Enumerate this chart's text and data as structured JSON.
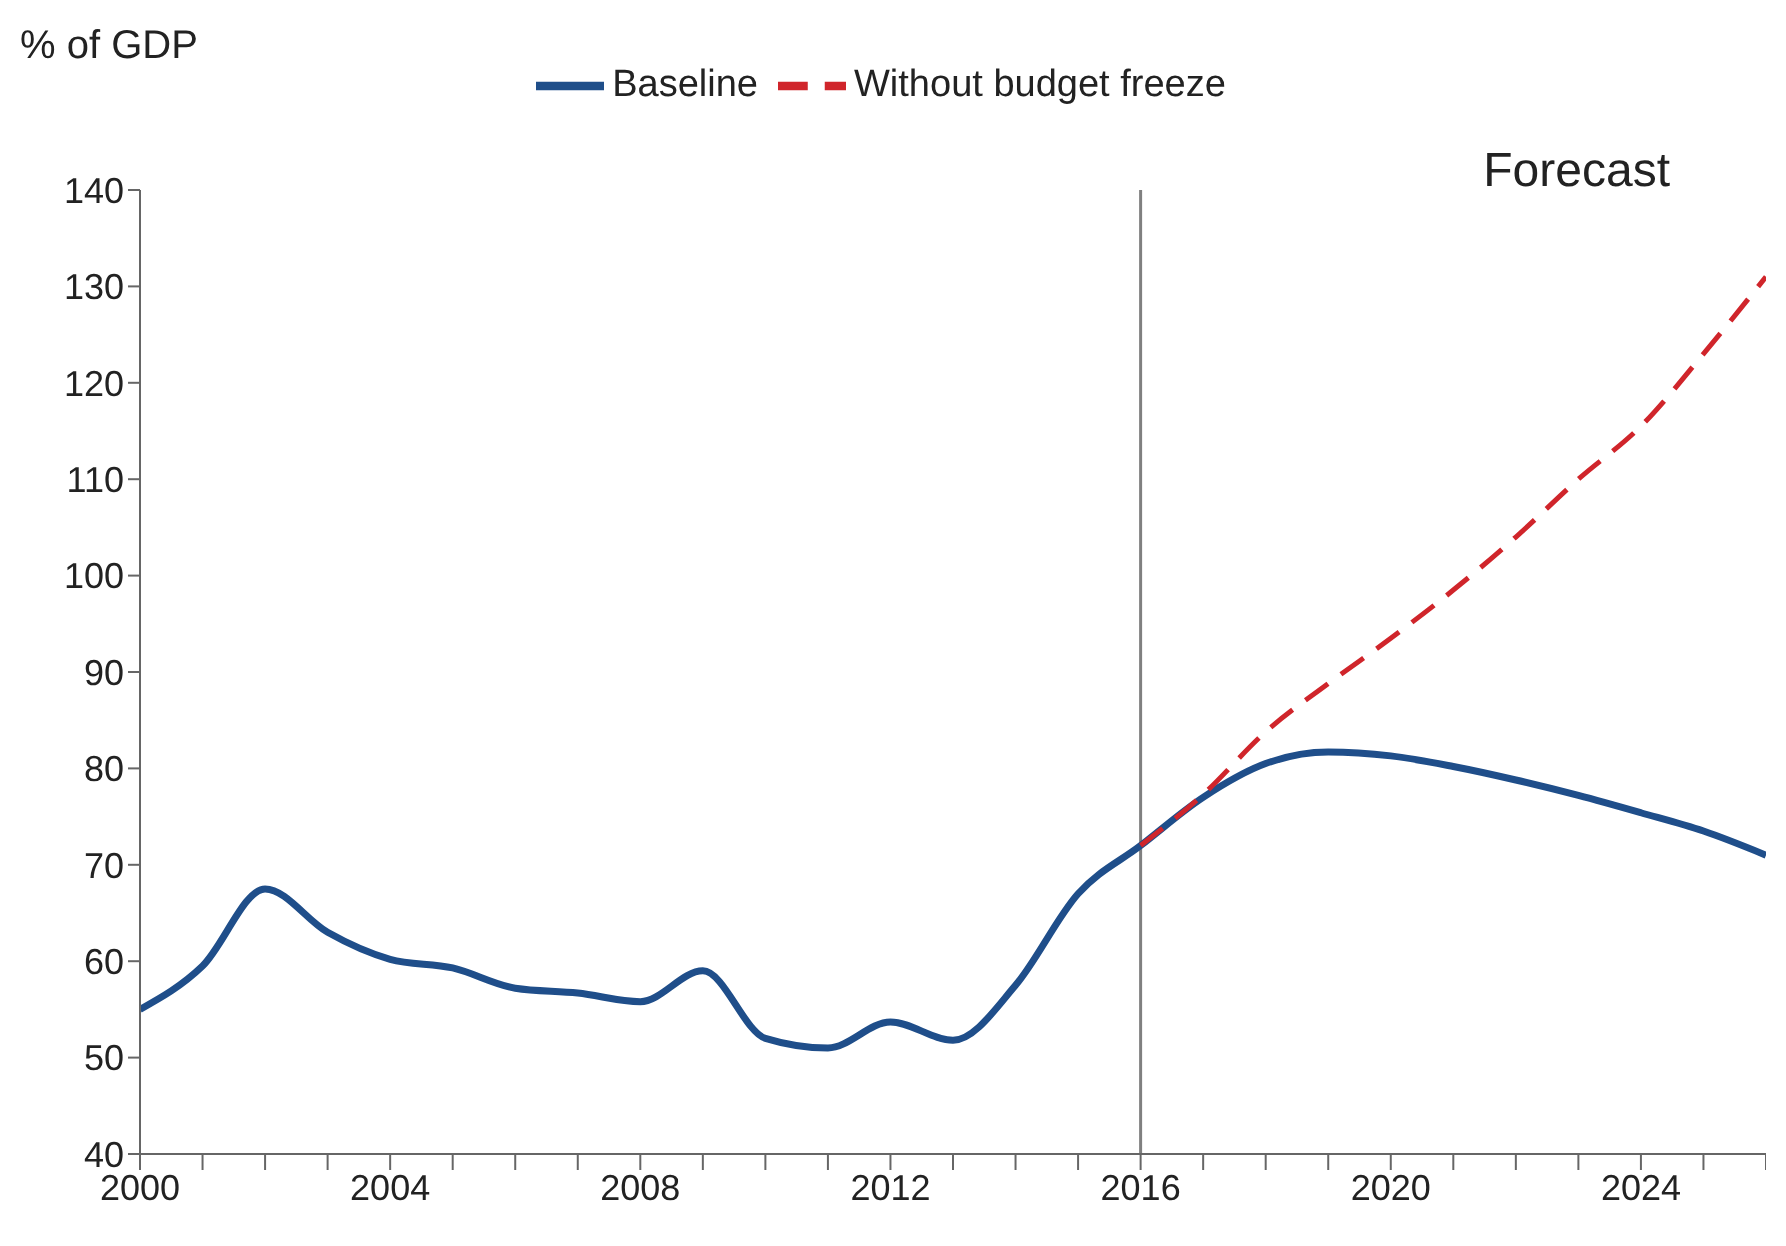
{
  "chart_data": {
    "type": "line",
    "ylabel": "% of GDP",
    "legend": "top",
    "grid": false,
    "line_style": "solid",
    "marker": "none",
    "x": [
      2000,
      2001,
      2002,
      2003,
      2004,
      2005,
      2006,
      2007,
      2008,
      2009,
      2010,
      2011,
      2012,
      2013,
      2014,
      2015,
      2016,
      2017,
      2018,
      2019,
      2020,
      2021,
      2022,
      2023,
      2024,
      2025,
      2026
    ],
    "series": [
      {
        "name": "Baseline",
        "color": "#1f4e8a",
        "values": [
          55,
          59.5,
          67.5,
          63,
          60.2,
          59.3,
          57.2,
          56.7,
          55.8,
          59,
          52,
          51,
          53.7,
          51.8,
          57.5,
          67,
          72,
          77,
          80.5,
          81.7,
          81.3,
          80.2,
          78.8,
          77.2,
          75.4,
          73.5,
          71
        ]
      },
      {
        "name": "Without budget freeze",
        "color": "#d0252b",
        "line_style": "dashed",
        "x": [
          2016,
          2017,
          2018,
          2019,
          2020,
          2021,
          2022,
          2023,
          2024,
          2025,
          2026
        ],
        "values": [
          72,
          77.3,
          83.8,
          88.8,
          93.5,
          98.5,
          104,
          110,
          115.5,
          123,
          131
        ]
      }
    ],
    "xlim": [
      2000,
      2026
    ],
    "xticks": [
      2000,
      {
        "value": 2001,
        "label": null
      },
      {
        "value": 2002,
        "label": null
      },
      {
        "value": 2003,
        "label": null
      },
      2004,
      {
        "value": 2005,
        "label": null
      },
      {
        "value": 2006,
        "label": null
      },
      {
        "value": 2007,
        "label": null
      },
      2008,
      {
        "value": 2009,
        "label": null
      },
      {
        "value": 2010,
        "label": null
      },
      {
        "value": 2011,
        "label": null
      },
      2012,
      {
        "value": 2013,
        "label": null
      },
      {
        "value": 2014,
        "label": null
      },
      {
        "value": 2015,
        "label": null
      },
      2016,
      {
        "value": 2017,
        "label": null
      },
      {
        "value": 2018,
        "label": null
      },
      {
        "value": 2019,
        "label": null
      },
      2020,
      {
        "value": 2021,
        "label": null
      },
      {
        "value": 2022,
        "label": null
      },
      {
        "value": 2023,
        "label": null
      },
      2024,
      {
        "value": 2025,
        "label": null
      },
      {
        "value": 2026,
        "label": null
      }
    ],
    "ylim": [
      40,
      140
    ],
    "yticks": [
      40,
      50,
      60,
      70,
      80,
      90,
      100,
      110,
      120,
      130,
      140
    ],
    "ref_lines": [
      {
        "axis": "x",
        "value": 2016,
        "label": null,
        "color": "#808080",
        "line_style": "solid"
      }
    ],
    "annotations": [
      "Forecast"
    ]
  }
}
